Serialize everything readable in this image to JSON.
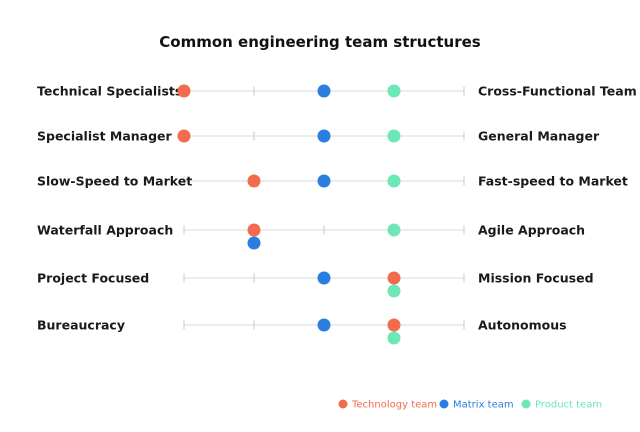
{
  "chart_data": {
    "type": "scatter",
    "title": "Common engineering team structures",
    "scale": {
      "min": 0,
      "max": 4,
      "ticks": [
        0,
        1,
        2,
        3,
        4
      ]
    },
    "dimensions": [
      {
        "left": "Technical Specialists",
        "right": "Cross-Functional Team"
      },
      {
        "left": "Specialist Manager",
        "right": "General Manager"
      },
      {
        "left": "Slow-Speed to Market",
        "right": "Fast-speed to Market"
      },
      {
        "left": "Waterfall Approach",
        "right": "Agile Approach"
      },
      {
        "left": "Project Focused",
        "right": "Mission Focused"
      },
      {
        "left": "Bureaucracy",
        "right": "Autonomous"
      }
    ],
    "series": [
      {
        "name": "Technology team",
        "color": "#f26b4e",
        "values": [
          0,
          0,
          1,
          1,
          3,
          3
        ]
      },
      {
        "name": "Matrix team",
        "color": "#2a7de1",
        "values": [
          2,
          2,
          2,
          1,
          2,
          2
        ]
      },
      {
        "name": "Product team",
        "color": "#6ee7b7",
        "values": [
          3,
          3,
          3,
          3,
          3,
          3
        ]
      }
    ],
    "legend": {
      "position": "bottom-right"
    }
  }
}
